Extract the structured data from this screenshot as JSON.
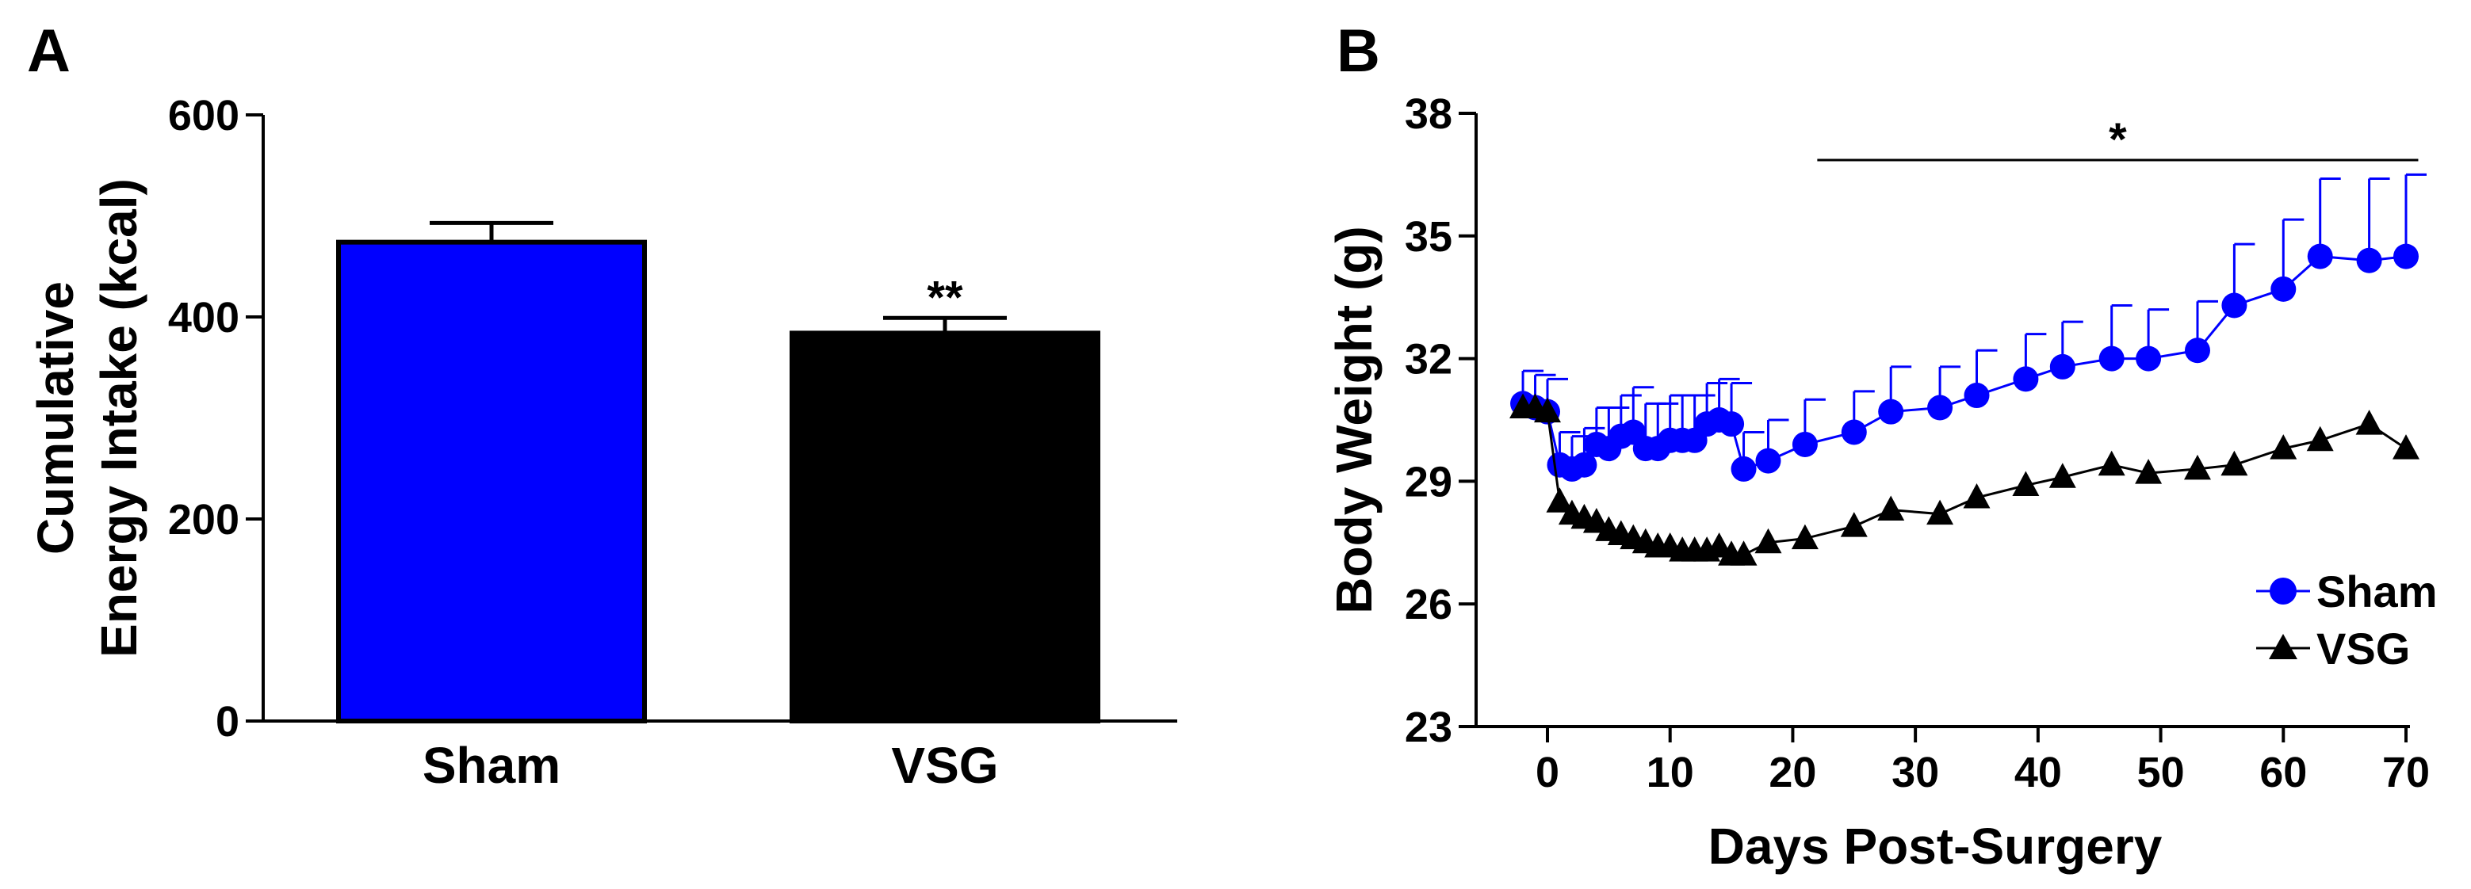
{
  "chart_data": [
    {
      "type": "bar",
      "panel_label": "A",
      "title": "",
      "ylabel_lines": [
        "Cumulative",
        "Energy Intake (kcal)"
      ],
      "xlabel": "",
      "categories": [
        "Sham",
        "VSG"
      ],
      "values": [
        474,
        384
      ],
      "errors": [
        19,
        15
      ],
      "colors": [
        "#0000ff",
        "#000000"
      ],
      "significance": [
        "",
        "**"
      ],
      "ylim": [
        0,
        600
      ],
      "yticks": [
        0,
        200,
        400,
        600
      ],
      "grid": false
    },
    {
      "type": "line",
      "panel_label": "B",
      "title": "",
      "xlabel": "Days Post-Surgery",
      "ylabel": "Body Weight (g)",
      "xlim": [
        -4,
        71
      ],
      "ylim": [
        23,
        38
      ],
      "xticks": [
        0,
        10,
        20,
        30,
        40,
        50,
        60,
        70
      ],
      "yticks": [
        23,
        26,
        29,
        32,
        35,
        38
      ],
      "grid": false,
      "legend_position": "bottom-right",
      "significance_bar": {
        "label": "*",
        "x_start": 22,
        "x_end": 71
      },
      "series": [
        {
          "name": "Sham",
          "color": "#0000ff",
          "marker": "circle",
          "error_direction": "up",
          "x": [
            -2,
            -1,
            0,
            1,
            2,
            3,
            4,
            5,
            6,
            7,
            8,
            9,
            10,
            11,
            12,
            13,
            14,
            15,
            16,
            18,
            21,
            25,
            28,
            32,
            35,
            39,
            42,
            46,
            49,
            53,
            56,
            60,
            63,
            67,
            70
          ],
          "y": [
            30.9,
            30.8,
            30.7,
            29.4,
            29.3,
            29.4,
            29.9,
            29.8,
            30.1,
            30.2,
            29.8,
            29.8,
            30.0,
            30.0,
            30.0,
            30.4,
            30.5,
            30.4,
            29.3,
            29.5,
            29.9,
            30.2,
            30.7,
            30.8,
            31.1,
            31.5,
            31.8,
            32.0,
            32.0,
            32.2,
            33.3,
            33.7,
            34.5,
            34.4,
            34.5
          ],
          "errors": [
            0.8,
            0.8,
            0.8,
            0.8,
            0.8,
            0.9,
            0.9,
            1.0,
            1.0,
            1.1,
            1.1,
            1.1,
            1.1,
            1.1,
            1.1,
            1.0,
            1.0,
            1.0,
            0.9,
            1.0,
            1.1,
            1.0,
            1.1,
            1.0,
            1.1,
            1.1,
            1.1,
            1.3,
            1.2,
            1.2,
            1.5,
            1.7,
            1.9,
            2.0,
            2.0
          ]
        },
        {
          "name": "VSG",
          "color": "#000000",
          "marker": "triangle",
          "error_direction": "up",
          "x": [
            -2,
            -1,
            0,
            1,
            2,
            3,
            4,
            5,
            6,
            7,
            8,
            9,
            10,
            11,
            12,
            13,
            14,
            15,
            16,
            18,
            21,
            25,
            28,
            32,
            35,
            39,
            42,
            46,
            49,
            53,
            56,
            60,
            63,
            67,
            70
          ],
          "y": [
            30.8,
            30.8,
            30.7,
            28.5,
            28.2,
            28.1,
            28.0,
            27.8,
            27.7,
            27.6,
            27.5,
            27.4,
            27.4,
            27.3,
            27.3,
            27.3,
            27.4,
            27.2,
            27.2,
            27.5,
            27.6,
            27.9,
            28.3,
            28.2,
            28.6,
            28.9,
            29.1,
            29.4,
            29.2,
            29.3,
            29.4,
            29.8,
            30.0,
            30.4,
            29.8
          ]
        }
      ]
    }
  ]
}
